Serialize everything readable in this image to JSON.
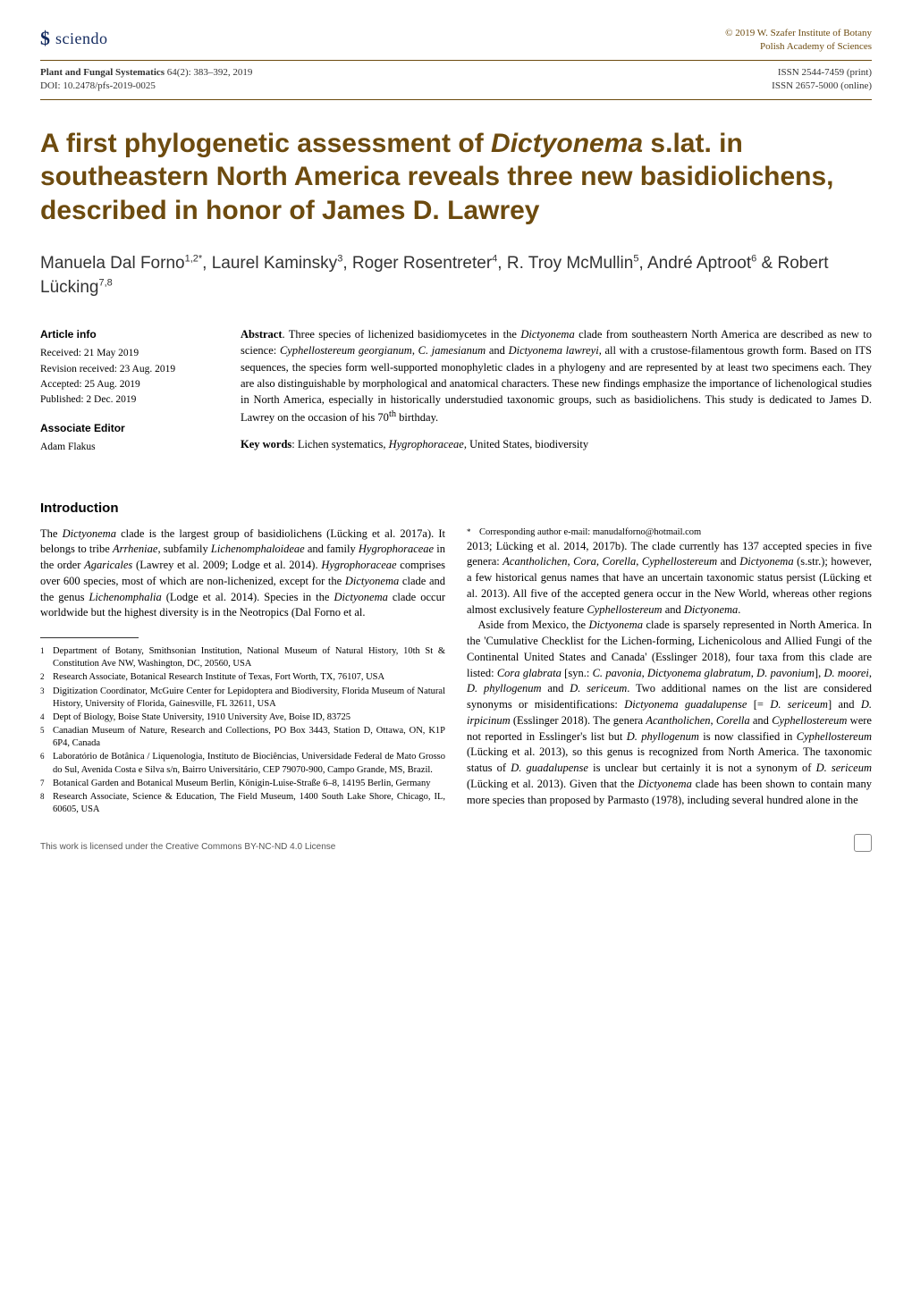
{
  "header": {
    "logo_text": "sciendo",
    "copyright_line1": "© 2019 W. Szafer Institute of Botany",
    "copyright_line2": "Polish Academy of Sciences"
  },
  "meta": {
    "journal": "Plant and Fungal Systematics",
    "issue": "64(2): 383–392, 2019",
    "doi": "DOI: 10.2478/pfs-2019-0025",
    "issn_print": "ISSN 2544-7459 (print)",
    "issn_online": "ISSN 2657-5000 (online)"
  },
  "title": "A first phylogenetic assessment of Dictyonema s.lat. in southeastern North America reveals three new basidiolichens, described in honor of James D. Lawrey",
  "authors_html": "Manuela Dal Forno<span class='sup'>1,2*</span>, Laurel Kaminsky<span class='sup'>3</span>, Roger Rosentreter<span class='sup'>4</span>, R. Troy McMullin<span class='sup'>5</span>, André Aptroot<span class='sup'>6</span> & Robert Lücking<span class='sup'>7,8</span>",
  "article_info": {
    "head": "Article info",
    "received": "Received: 21 May 2019",
    "revision": "Revision received: 23 Aug. 2019",
    "accepted": "Accepted: 25 Aug. 2019",
    "published": "Published: 2 Dec. 2019"
  },
  "assoc_editor": {
    "head": "Associate Editor",
    "name": "Adam Flakus"
  },
  "abstract": {
    "label": "Abstract",
    "body": ". Three species of lichenized basidiomycetes in the Dictyonema clade from southeastern North America are described as new to science: Cyphellostereum georgianum, C. jamesianum and Dictyonema lawreyi, all with a crustose-filamentous growth form. Based on ITS sequences, the species form well-supported monophyletic clades in a phylogeny and are represented by at least two specimens each. They are also distinguishable by morphological and anatomical characters. These new findings emphasize the importance of lichenological studies in North America, especially in historically understudied taxonomic groups, such as basidiolichens. This study is dedicated to James D. Lawrey on the occasion of his 70th birthday."
  },
  "keywords": {
    "label": "Key words",
    "body": ": Lichen systematics, Hygrophoraceae, United States, biodiversity"
  },
  "intro_head": "Introduction",
  "intro_p1": "The Dictyonema clade is the largest group of basidiolichens (Lücking et al. 2017a). It belongs to tribe Arrheniae, subfamily Lichenomphaloideae and family Hygrophoraceae in the order Agaricales (Lawrey et al. 2009; Lodge et al. 2014). Hygrophoraceae comprises over 600 species, most of which are non-lichenized, except for the Dictyonema clade and the genus Lichenomphalia (Lodge et al. 2014). Species in the Dictyonema clade occur worldwide but the highest diversity is in the Neotropics (Dal Forno et al.",
  "intro_p2": "2013; Lücking et al. 2014, 2017b). The clade currently has 137 accepted species in five genera: Acantholichen, Cora, Corella, Cyphellostereum and Dictyonema (s.str.); however, a few historical genus names that have an uncertain taxonomic status persist (Lücking et al. 2013). All five of the accepted genera occur in the New World, whereas other regions almost exclusively feature Cyphellostereum and Dictyonema.",
  "intro_p3": "Aside from Mexico, the Dictyonema clade is sparsely represented in North America. In the 'Cumulative Checklist for the Lichen-forming, Lichenicolous and Allied Fungi of the Continental United States and Canada' (Esslinger 2018), four taxa from this clade are listed: Cora glabrata [syn.: C. pavonia, Dictyonema glabratum, D. pavonium], D. moorei, D. phyllogenum and D. sericeum. Two additional names on the list are considered synonyms or misidentifications: Dictyonema guadalupense [= D. sericeum] and D. irpicinum (Esslinger 2018). The genera Acantholichen, Corella and Cyphellostereum were not reported in Esslinger's list but D. phyllogenum is now classified in Cyphellostereum (Lücking et al. 2013), so this genus is recognized from North America. The taxonomic status of D. guadalupense is unclear but certainly it is not a synonym of D. sericeum (Lücking et al. 2013). Given that the Dictyonema clade has been shown to contain many more species than proposed by Parmasto (1978), including several hundred alone in the",
  "footnotes": [
    {
      "mark": "1",
      "text": "Department of Botany, Smithsonian Institution, National Museum of Natural History, 10th St & Constitution Ave NW, Washington, DC, 20560, USA"
    },
    {
      "mark": "2",
      "text": "Research Associate, Botanical Research Institute of Texas, Fort Worth, TX, 76107, USA"
    },
    {
      "mark": "3",
      "text": "Digitization Coordinator, McGuire Center for Lepidoptera and Biodiversity, Florida Museum of Natural History, University of Florida, Gainesville, FL 32611, USA"
    },
    {
      "mark": "4",
      "text": "Dept of Biology, Boise State University, 1910 University Ave, Boise ID, 83725"
    },
    {
      "mark": "5",
      "text": "Canadian Museum of Nature, Research and Collections, PO Box 3443, Station D, Ottawa, ON, K1P 6P4, Canada"
    },
    {
      "mark": "6",
      "text": "Laboratório de Botânica / Liquenologia, Instituto de Biociências, Universidade Federal de Mato Grosso do Sul, Avenida Costa e Silva s/n, Bairro Universitário, CEP 79070-900, Campo Grande, MS, Brazil."
    },
    {
      "mark": "7",
      "text": "Botanical Garden and Botanical Museum Berlin, Königin-Luise-Straße 6–8, 14195 Berlin, Germany"
    },
    {
      "mark": "8",
      "text": "Research Associate, Science & Education, The Field Museum, 1400 South Lake Shore, Chicago, IL, 60605, USA"
    },
    {
      "mark": "*",
      "text": "Corresponding author e-mail: manudalforno@hotmail.com"
    }
  ],
  "footer": {
    "license": "This work is licensed under the Creative Commons BY-NC-ND 4.0 License"
  },
  "colors": {
    "accent": "#6d4b0f",
    "logo": "#132a5f"
  }
}
